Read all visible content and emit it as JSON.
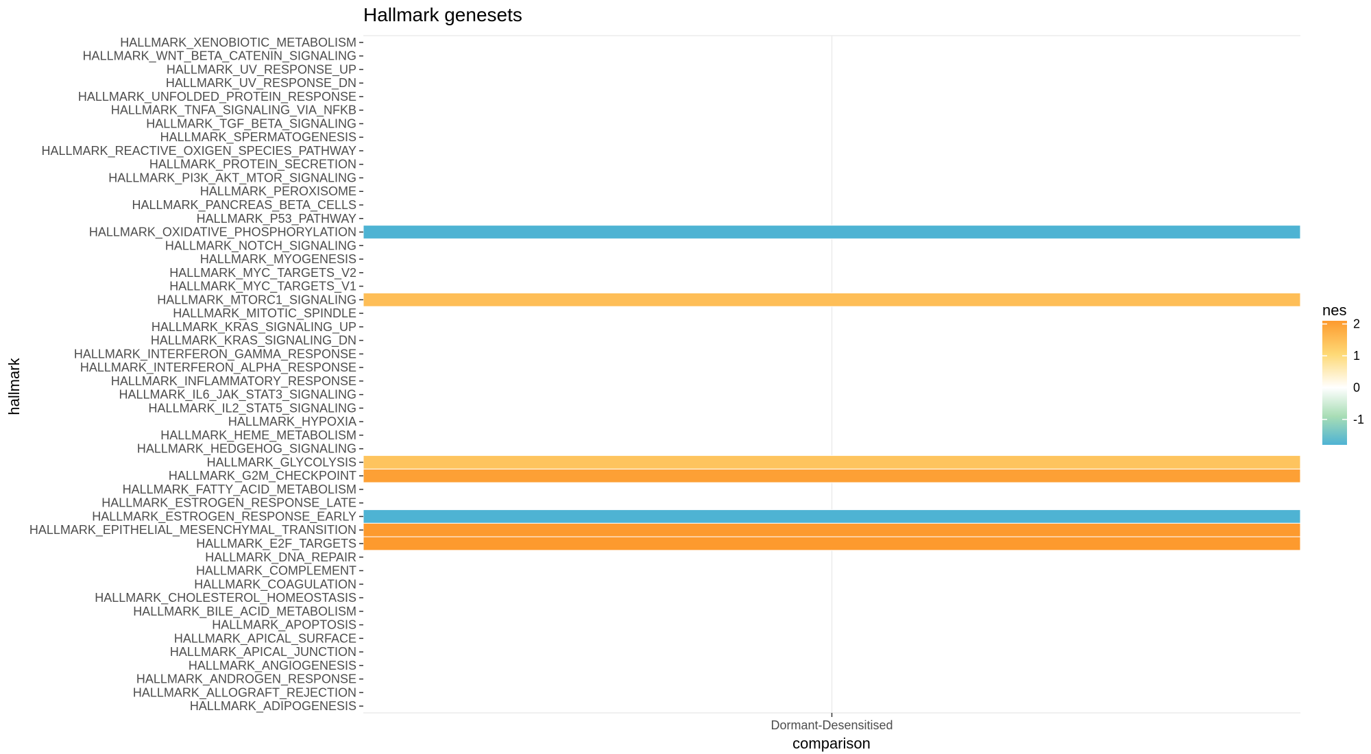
{
  "chart_data": {
    "type": "heatmap",
    "title": "Hallmark genesets",
    "xlabel": "comparison",
    "ylabel": "hallmark",
    "x_categories": [
      "Dormant-Desensitised"
    ],
    "y_categories": [
      "HALLMARK_XENOBIOTIC_METABOLISM",
      "HALLMARK_WNT_BETA_CATENIN_SIGNALING",
      "HALLMARK_UV_RESPONSE_UP",
      "HALLMARK_UV_RESPONSE_DN",
      "HALLMARK_UNFOLDED_PROTEIN_RESPONSE",
      "HALLMARK_TNFA_SIGNALING_VIA_NFKB",
      "HALLMARK_TGF_BETA_SIGNALING",
      "HALLMARK_SPERMATOGENESIS",
      "HALLMARK_REACTIVE_OXIGEN_SPECIES_PATHWAY",
      "HALLMARK_PROTEIN_SECRETION",
      "HALLMARK_PI3K_AKT_MTOR_SIGNALING",
      "HALLMARK_PEROXISOME",
      "HALLMARK_PANCREAS_BETA_CELLS",
      "HALLMARK_P53_PATHWAY",
      "HALLMARK_OXIDATIVE_PHOSPHORYLATION",
      "HALLMARK_NOTCH_SIGNALING",
      "HALLMARK_MYOGENESIS",
      "HALLMARK_MYC_TARGETS_V2",
      "HALLMARK_MYC_TARGETS_V1",
      "HALLMARK_MTORC1_SIGNALING",
      "HALLMARK_MITOTIC_SPINDLE",
      "HALLMARK_KRAS_SIGNALING_UP",
      "HALLMARK_KRAS_SIGNALING_DN",
      "HALLMARK_INTERFERON_GAMMA_RESPONSE",
      "HALLMARK_INTERFERON_ALPHA_RESPONSE",
      "HALLMARK_INFLAMMATORY_RESPONSE",
      "HALLMARK_IL6_JAK_STAT3_SIGNALING",
      "HALLMARK_IL2_STAT5_SIGNALING",
      "HALLMARK_HYPOXIA",
      "HALLMARK_HEME_METABOLISM",
      "HALLMARK_HEDGEHOG_SIGNALING",
      "HALLMARK_GLYCOLYSIS",
      "HALLMARK_G2M_CHECKPOINT",
      "HALLMARK_FATTY_ACID_METABOLISM",
      "HALLMARK_ESTROGEN_RESPONSE_LATE",
      "HALLMARK_ESTROGEN_RESPONSE_EARLY",
      "HALLMARK_EPITHELIAL_MESENCHYMAL_TRANSITION",
      "HALLMARK_E2F_TARGETS",
      "HALLMARK_DNA_REPAIR",
      "HALLMARK_COMPLEMENT",
      "HALLMARK_COAGULATION",
      "HALLMARK_CHOLESTEROL_HOMEOSTASIS",
      "HALLMARK_BILE_ACID_METABOLISM",
      "HALLMARK_APOPTOSIS",
      "HALLMARK_APICAL_SURFACE",
      "HALLMARK_APICAL_JUNCTION",
      "HALLMARK_ANGIOGENESIS",
      "HALLMARK_ANDROGEN_RESPONSE",
      "HALLMARK_ALLOGRAFT_REJECTION",
      "HALLMARK_ADIPOGENESIS"
    ],
    "cells": [
      {
        "x": "Dormant-Desensitised",
        "y": "HALLMARK_OXIDATIVE_PHOSPHORYLATION",
        "value": -1.8
      },
      {
        "x": "Dormant-Desensitised",
        "y": "HALLMARK_MTORC1_SIGNALING",
        "value": 1.5
      },
      {
        "x": "Dormant-Desensitised",
        "y": "HALLMARK_GLYCOLYSIS",
        "value": 1.4
      },
      {
        "x": "Dormant-Desensitised",
        "y": "HALLMARK_G2M_CHECKPOINT",
        "value": 2.0
      },
      {
        "x": "Dormant-Desensitised",
        "y": "HALLMARK_ESTROGEN_RESPONSE_EARLY",
        "value": -1.8
      },
      {
        "x": "Dormant-Desensitised",
        "y": "HALLMARK_EPITHELIAL_MESENCHYMAL_TRANSITION",
        "value": 2.1
      },
      {
        "x": "Dormant-Desensitised",
        "y": "HALLMARK_E2F_TARGETS",
        "value": 2.1
      }
    ],
    "legend": {
      "title": "nes",
      "breaks": [
        2,
        1,
        0,
        -1
      ],
      "range": [
        -1.8,
        2.1
      ],
      "colors": {
        "low": "#4EB3D3",
        "mid_low": "#A8DDB5",
        "mid": "#FFFFFF",
        "mid_high": "#FED976",
        "high": "#FD9A2E"
      },
      "placement": "right"
    },
    "grid": true
  }
}
